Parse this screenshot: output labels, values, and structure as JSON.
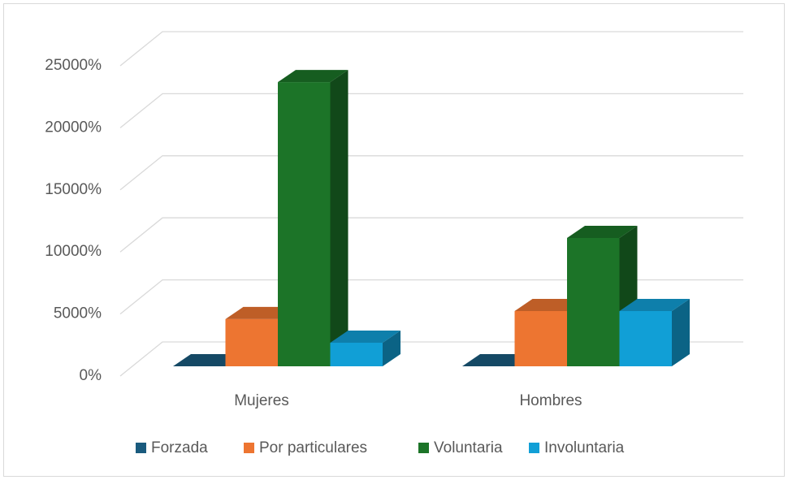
{
  "chart_data": {
    "type": "bar3d",
    "categories": [
      "Mujeres",
      "Hombres"
    ],
    "series": [
      {
        "name": "Forzada",
        "color": "#1a5b7e",
        "values": [
          0,
          0
        ]
      },
      {
        "name": "Por particulares",
        "color": "#ed7531",
        "values": [
          3800,
          4450
        ]
      },
      {
        "name": "Voluntaria",
        "color": "#1c7428",
        "values": [
          22900,
          10340
        ]
      },
      {
        "name": "Involuntaria",
        "color": "#119fd6",
        "values": [
          1900,
          4450
        ]
      }
    ],
    "ylim": [
      0,
      25000
    ],
    "yticks": [
      {
        "value": 0,
        "label": "0%"
      },
      {
        "value": 5000,
        "label": "5000%"
      },
      {
        "value": 10000,
        "label": "10000%"
      },
      {
        "value": 15000,
        "label": "15000%"
      },
      {
        "value": 20000,
        "label": "20000%"
      },
      {
        "value": 25000,
        "label": "25000%"
      }
    ],
    "grid": true,
    "legend": "bottom"
  }
}
